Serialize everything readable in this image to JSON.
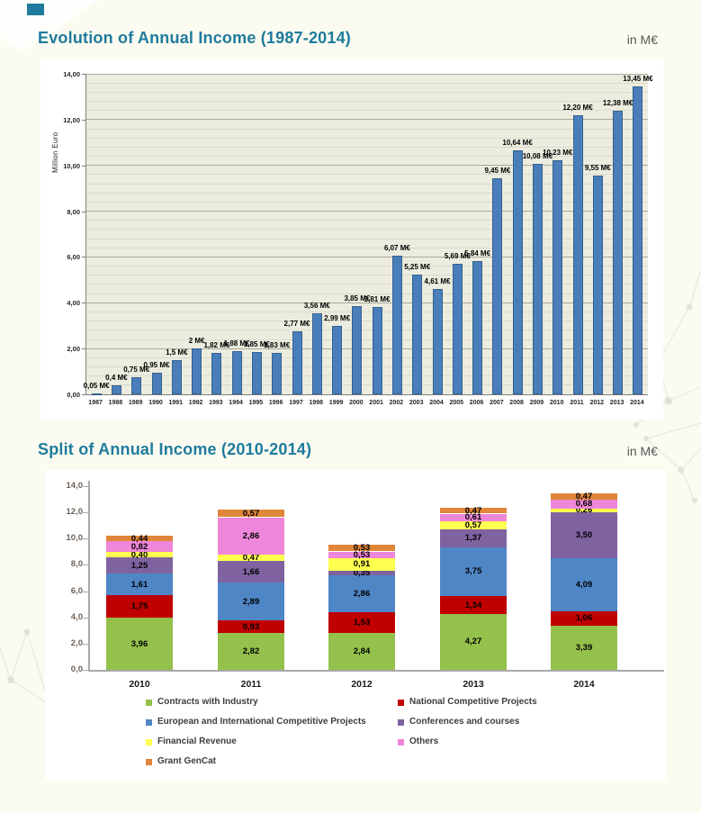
{
  "page": {
    "accent_color": "#1e7b9d",
    "background_color": "#fbfbf1"
  },
  "chart_data": [
    {
      "type": "bar",
      "title": "Evolution of Annual Income (1987-2014)",
      "unit_label": "in M€",
      "ylabel": "Million Euro",
      "xlabel": "",
      "ylim": [
        0,
        14
      ],
      "ytick_step": 2,
      "yminor_step": 0.4,
      "ytick_labels": [
        "0,00",
        "2,00",
        "4,00",
        "6,00",
        "8,00",
        "10,00",
        "12,00",
        "14,00"
      ],
      "grid": true,
      "legend_position": "none",
      "bar_color": "#4a7ebb",
      "bar_border_color": "#35618f",
      "plot_background": "#ececdf",
      "categories": [
        "1987",
        "1988",
        "1989",
        "1990",
        "1991",
        "1992",
        "1993",
        "1994",
        "1995",
        "1996",
        "1997",
        "1998",
        "1999",
        "2000",
        "2001",
        "2002",
        "2003",
        "2004",
        "2005",
        "2006",
        "2007",
        "2008",
        "2009",
        "2010",
        "2011",
        "2012",
        "2013",
        "2014"
      ],
      "values": [
        0.05,
        0.4,
        0.75,
        0.95,
        1.5,
        2,
        1.82,
        1.88,
        1.85,
        1.83,
        2.77,
        3.56,
        2.99,
        3.85,
        3.81,
        6.07,
        5.25,
        4.61,
        5.69,
        5.84,
        9.45,
        10.64,
        10.08,
        10.23,
        12.2,
        9.55,
        12.38,
        13.45
      ],
      "bar_labels": [
        "0,05 M€",
        "0,4 M€",
        "0,75 M€",
        "0,95 M€",
        "1,5 M€",
        "2 M€",
        "1,82 M€",
        "1,88 M€",
        "1,85 M€",
        "1,83 M€",
        "2,77 M€",
        "3,56 M€",
        "2,99 M€",
        "3,85 M€",
        "3,81 M€",
        "6,07 M€",
        "5,25 M€",
        "4,61 M€",
        "5,69 M€",
        "5,84 M€",
        "9,45 M€",
        "10,64 M€",
        "10,08 M€",
        "10,23 M€",
        "12,20 M€",
        "9,55 M€",
        "12,38 M€",
        "13,45 M€"
      ]
    },
    {
      "type": "stacked-bar",
      "title": "Split of Annual Income (2010-2014)",
      "unit_label": "in M€",
      "ylim": [
        0,
        14
      ],
      "ytick_step": 2,
      "ytick_labels": [
        "0,0",
        "2,0",
        "4,0",
        "6,0",
        "8,0",
        "10,0",
        "12,0",
        "14,0"
      ],
      "grid": false,
      "legend_position": "bottom",
      "categories": [
        "2010",
        "2011",
        "2012",
        "2013",
        "2014"
      ],
      "series": [
        {
          "name": "Contracts with Industry",
          "color": "#94c04c",
          "values": [
            3.96,
            2.82,
            2.84,
            4.27,
            3.39
          ]
        },
        {
          "name": "National Competitive Projects",
          "color": "#c00000",
          "values": [
            1.75,
            0.93,
            1.53,
            1.34,
            1.06
          ]
        },
        {
          "name": "European and International Competitive Projects",
          "color": "#4f86c6",
          "values": [
            1.61,
            2.89,
            2.86,
            3.75,
            4.09
          ]
        },
        {
          "name": "Conferences and courses",
          "color": "#7f63a1",
          "values": [
            1.25,
            1.66,
            0.35,
            1.37,
            3.5
          ]
        },
        {
          "name": "Financial Revenue",
          "color": "#ffff4f",
          "values": [
            0.4,
            0.47,
            0.91,
            0.57,
            0.26
          ]
        },
        {
          "name": "Others",
          "color": "#ee86d9",
          "values": [
            0.82,
            2.86,
            0.53,
            0.61,
            0.68
          ]
        },
        {
          "name": "Grant GenCat",
          "color": "#e08639",
          "values": [
            0.44,
            0.57,
            0.53,
            0.47,
            0.47
          ]
        }
      ],
      "totals": [
        10.23,
        12.2,
        9.55,
        12.38,
        13.45
      ],
      "legend_columns": [
        [
          0,
          2,
          4,
          6
        ],
        [
          1,
          3,
          5
        ]
      ]
    }
  ]
}
